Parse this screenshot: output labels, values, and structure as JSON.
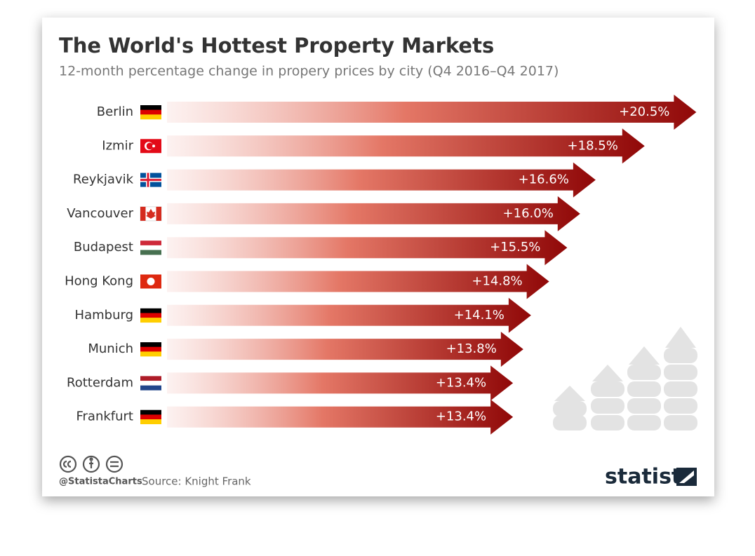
{
  "chart_data": {
    "type": "bar",
    "title": "The World's Hottest Property Markets",
    "subtitle": "12-month percentage change in propery prices by city (Q4 2016–Q4 2017)",
    "categories": [
      "Berlin",
      "Izmir",
      "Reykjavik",
      "Vancouver",
      "Budapest",
      "Hong Kong",
      "Hamburg",
      "Munich",
      "Rotterdam",
      "Frankfurt"
    ],
    "values": [
      20.5,
      18.5,
      16.6,
      16.0,
      15.5,
      14.8,
      14.1,
      13.8,
      13.4,
      13.4
    ],
    "value_labels": [
      "+20.5%",
      "+18.5%",
      "+16.6%",
      "+16.0%",
      "+15.5%",
      "+14.8%",
      "+14.1%",
      "+13.8%",
      "+13.4%",
      "+13.4%"
    ],
    "color": "#9b0a0a",
    "credit": "@StatistaCharts",
    "source": "Source: Knight Frank",
    "brand": "statista"
  }
}
